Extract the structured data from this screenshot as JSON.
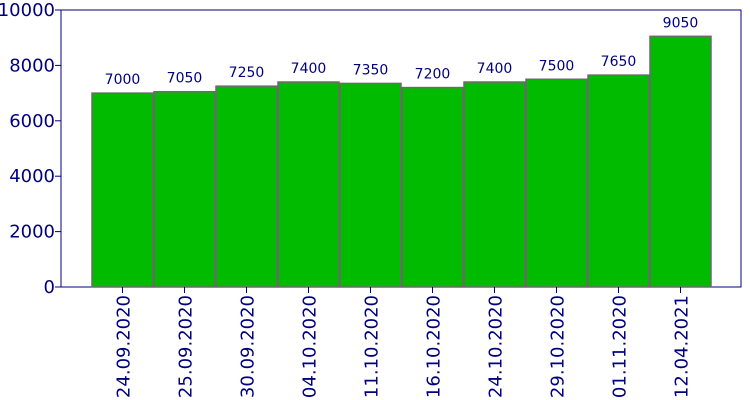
{
  "chart_data": {
    "type": "bar",
    "categories": [
      "24.09.2020",
      "25.09.2020",
      "30.09.2020",
      "04.10.2020",
      "11.10.2020",
      "16.10.2020",
      "24.10.2020",
      "29.10.2020",
      "01.11.2020",
      "12.04.2021"
    ],
    "values": [
      7000,
      7050,
      7250,
      7400,
      7350,
      7200,
      7400,
      7500,
      7650,
      9050
    ],
    "data_labels": [
      "7000",
      "7050",
      "7250",
      "7400",
      "7350",
      "7200",
      "7400",
      "7500",
      "7650",
      "9050"
    ],
    "y_ticks": [
      "0",
      "2000",
      "4000",
      "6000",
      "8000",
      "10000"
    ],
    "y_tick_values": [
      0,
      2000,
      4000,
      6000,
      8000,
      10000
    ],
    "ylim": [
      0,
      10000
    ],
    "title": "",
    "xlabel": "",
    "ylabel": "",
    "grid": false,
    "legend": "none",
    "colors": {
      "bar_fill": "#00bb00",
      "bar_stroke": "#6b6b6b",
      "text": "#00007f",
      "axis": "#00007f"
    }
  }
}
